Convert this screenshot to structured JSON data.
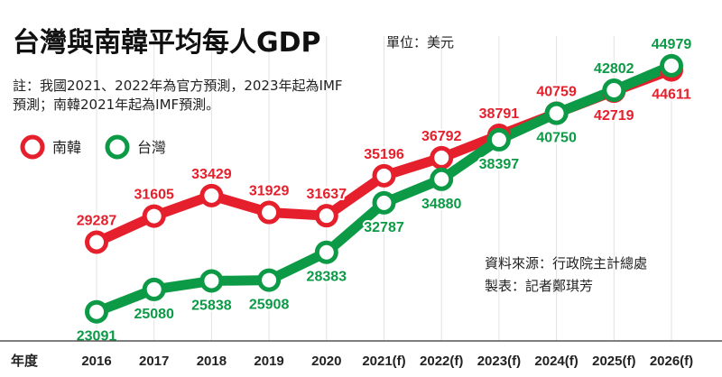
{
  "title": "台灣與南韓平均每人GDP",
  "unit": "單位：美元",
  "notes": [
    "註：我國2021、2022年為官方預測，2023年起為IMF",
    "預測；南韓2021年起為IMF預測。"
  ],
  "source": "資料來源：行政院主計總處",
  "credit": "製表：記者鄭琪芳",
  "colors": {
    "korea": "#e51f2b",
    "taiwan": "#0c9a46",
    "axis": "#555555",
    "grid": "#e2e2e2"
  },
  "legend_icon": "ring-marker",
  "chart_data": {
    "type": "line",
    "title": "台灣與南韓平均每人GDP",
    "xlabel": "年度",
    "ylabel": "",
    "unit": "單位：美元",
    "categories": [
      "2016",
      "2017",
      "2018",
      "2019",
      "2020",
      "2021(f)",
      "2022(f)",
      "2023(f)",
      "2024(f)",
      "2025(f)",
      "2026(f)"
    ],
    "series": [
      {
        "name": "南韓",
        "color": "#e51f2b",
        "values": [
          29287,
          31605,
          33429,
          31929,
          31637,
          35196,
          36792,
          38791,
          40759,
          42719,
          44611
        ]
      },
      {
        "name": "台灣",
        "color": "#0c9a46",
        "values": [
          23091,
          25080,
          25838,
          25908,
          28383,
          32787,
          34880,
          38397,
          40750,
          42802,
          44979
        ]
      }
    ],
    "ylim": [
      20500,
      48500
    ],
    "grid": true,
    "legend_position": "top-left"
  }
}
